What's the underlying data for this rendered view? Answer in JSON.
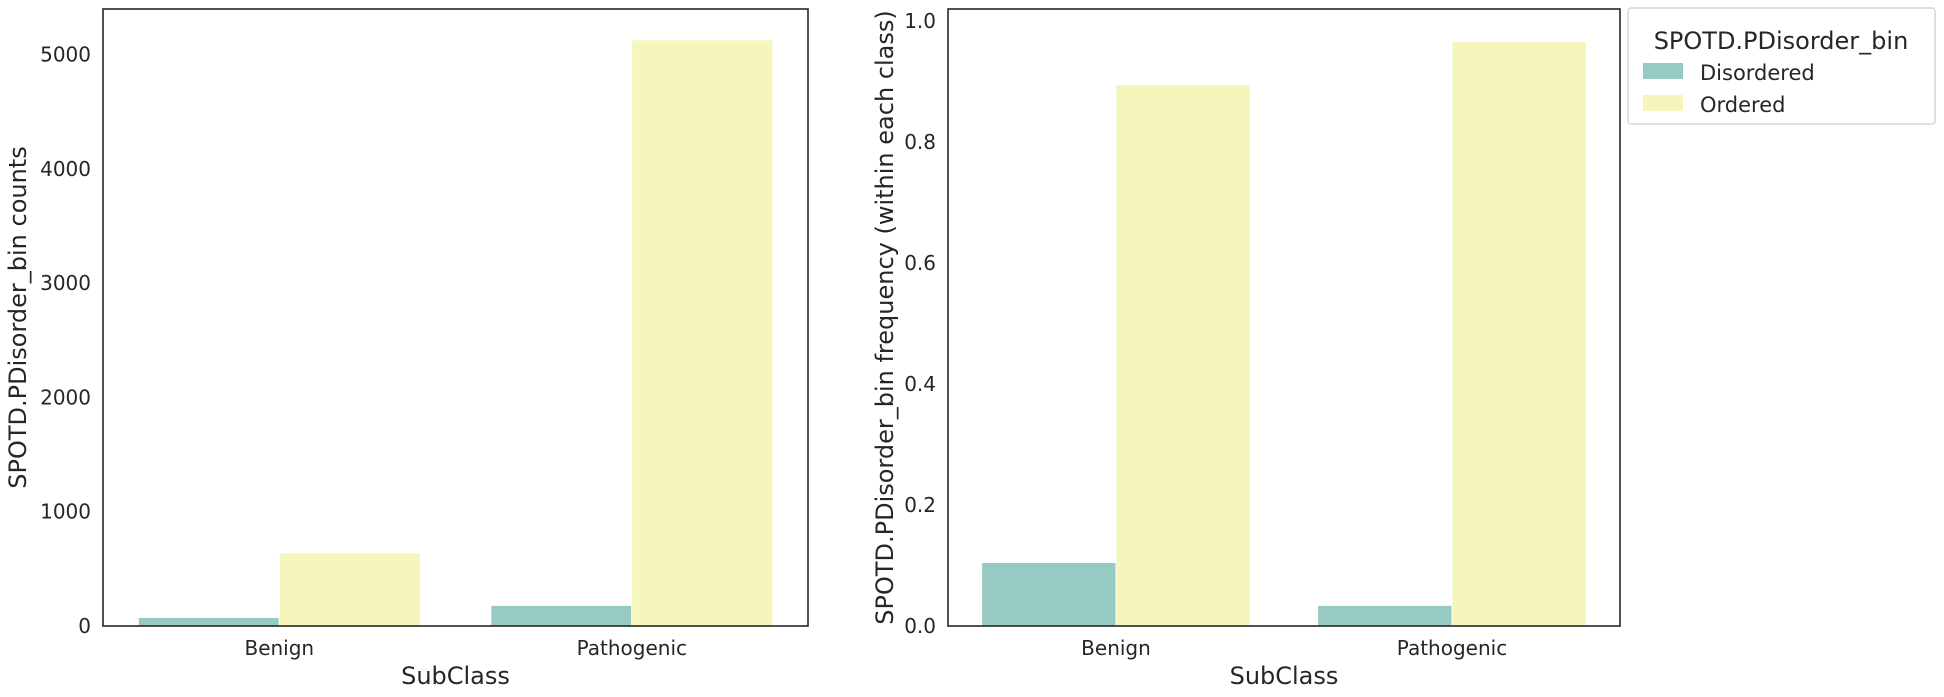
{
  "chart_data": [
    {
      "type": "bar",
      "categories": [
        "Benign",
        "Pathogenic"
      ],
      "series": [
        {
          "name": "Disordered",
          "values": [
            75,
            180
          ]
        },
        {
          "name": "Ordered",
          "values": [
            640,
            5130
          ]
        }
      ],
      "xlabel": "SubClass",
      "ylabel": "SPOTD.PDisorder_bin counts",
      "ylim": [
        0,
        5400
      ],
      "yticks": [
        0,
        1000,
        2000,
        3000,
        4000,
        5000
      ],
      "ytick_labels": [
        "0",
        "1000",
        "2000",
        "3000",
        "4000",
        "5000"
      ],
      "grid": false
    },
    {
      "type": "bar",
      "categories": [
        "Benign",
        "Pathogenic"
      ],
      "series": [
        {
          "name": "Disordered",
          "values": [
            0.105,
            0.034
          ]
        },
        {
          "name": "Ordered",
          "values": [
            0.895,
            0.966
          ]
        }
      ],
      "xlabel": "SubClass",
      "ylabel": "SPOTD.PDisorder_bin frequency (within each class)",
      "ylim": [
        0,
        1.02
      ],
      "yticks": [
        0,
        0.2,
        0.4,
        0.6,
        0.8,
        1.0
      ],
      "ytick_labels": [
        "0.0",
        "0.2",
        "0.4",
        "0.6",
        "0.8",
        "1.0"
      ],
      "grid": false
    }
  ],
  "legend": {
    "title": "SPOTD.PDisorder_bin",
    "placement": "outside-top-right",
    "entries": [
      "Disordered",
      "Ordered"
    ]
  },
  "colors": {
    "Disordered": "#97cac2",
    "Ordered": "#f6f5bb",
    "axis": "#262626"
  }
}
